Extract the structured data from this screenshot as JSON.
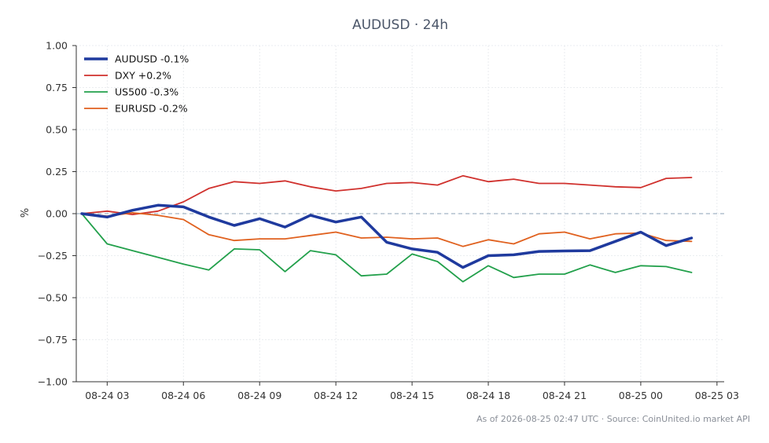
{
  "chart_data": {
    "type": "line",
    "title": "AUDUSD · 24h",
    "xlabel": "",
    "ylabel": "%",
    "ylim": [
      -1.0,
      1.0
    ],
    "yticks": [
      "1.00",
      "0.75",
      "0.50",
      "0.25",
      "0.00",
      "−0.25",
      "−0.50",
      "−0.75",
      "−1.00"
    ],
    "ytick_values": [
      1.0,
      0.75,
      0.5,
      0.25,
      0.0,
      -0.25,
      -0.5,
      -0.75,
      -1.0
    ],
    "xlim": [
      "08-24 01:47",
      "08-25 03:17"
    ],
    "xticks": [
      "08-24 03",
      "08-24 06",
      "08-24 09",
      "08-24 12",
      "08-24 15",
      "08-24 18",
      "08-24 21",
      "08-25 00",
      "08-25 03"
    ],
    "xtick_values": [
      "08-24 03:00",
      "08-24 06:00",
      "08-24 09:00",
      "08-24 12:00",
      "08-24 15:00",
      "08-24 18:00",
      "08-24 21:00",
      "08-25 00:00",
      "08-25 03:00"
    ],
    "x": [
      "08-24 02:00",
      "08-24 03:00",
      "08-24 04:00",
      "08-24 05:00",
      "08-24 06:00",
      "08-24 07:00",
      "08-24 08:00",
      "08-24 09:00",
      "08-24 10:00",
      "08-24 11:00",
      "08-24 12:00",
      "08-24 13:00",
      "08-24 14:00",
      "08-24 15:00",
      "08-24 16:00",
      "08-24 17:00",
      "08-24 18:00",
      "08-24 19:00",
      "08-24 20:00",
      "08-24 21:00",
      "08-24 22:00",
      "08-24 23:00",
      "08-25 00:00",
      "08-25 01:00",
      "08-25 02:00"
    ],
    "legend_position": "top-left",
    "grid": true,
    "zero_line": true,
    "series": [
      {
        "name": "AUDUSD -0.1%",
        "color": "#1f3a9e",
        "width": 3.5,
        "values": [
          0.0,
          -0.02,
          0.02,
          0.05,
          0.04,
          -0.02,
          -0.07,
          -0.03,
          -0.08,
          -0.01,
          -0.05,
          -0.02,
          -0.17,
          -0.21,
          -0.23,
          -0.32,
          -0.25,
          -0.245,
          -0.225,
          -0.222,
          -0.22,
          -0.165,
          -0.11,
          -0.19,
          -0.145
        ]
      },
      {
        "name": "DXY +0.2%",
        "color": "#d0312d",
        "width": 1.8,
        "values": [
          0.0,
          0.015,
          -0.005,
          0.015,
          0.07,
          0.15,
          0.19,
          0.18,
          0.195,
          0.16,
          0.135,
          0.15,
          0.18,
          0.185,
          0.17,
          0.225,
          0.19,
          0.205,
          0.18,
          0.18,
          0.17,
          0.16,
          0.155,
          0.21,
          0.215
        ]
      },
      {
        "name": "US500 -0.3%",
        "color": "#22a04b",
        "width": 1.8,
        "values": [
          0.0,
          -0.18,
          -0.22,
          -0.26,
          -0.3,
          -0.335,
          -0.21,
          -0.215,
          -0.345,
          -0.22,
          -0.245,
          -0.37,
          -0.36,
          -0.24,
          -0.285,
          -0.405,
          -0.31,
          -0.38,
          -0.36,
          -0.36,
          -0.305,
          -0.35,
          -0.31,
          -0.315,
          -0.35
        ]
      },
      {
        "name": "EURUSD -0.2%",
        "color": "#e0611f",
        "width": 1.8,
        "values": [
          0.0,
          -0.015,
          0.005,
          -0.01,
          -0.035,
          -0.125,
          -0.16,
          -0.15,
          -0.15,
          -0.13,
          -0.11,
          -0.145,
          -0.14,
          -0.15,
          -0.145,
          -0.195,
          -0.155,
          -0.18,
          -0.12,
          -0.11,
          -0.15,
          -0.12,
          -0.115,
          -0.16,
          -0.165
        ]
      }
    ]
  },
  "footer": {
    "source": "As of 2026-08-25 02:47 UTC · Source: CoinUnited.io market API"
  }
}
